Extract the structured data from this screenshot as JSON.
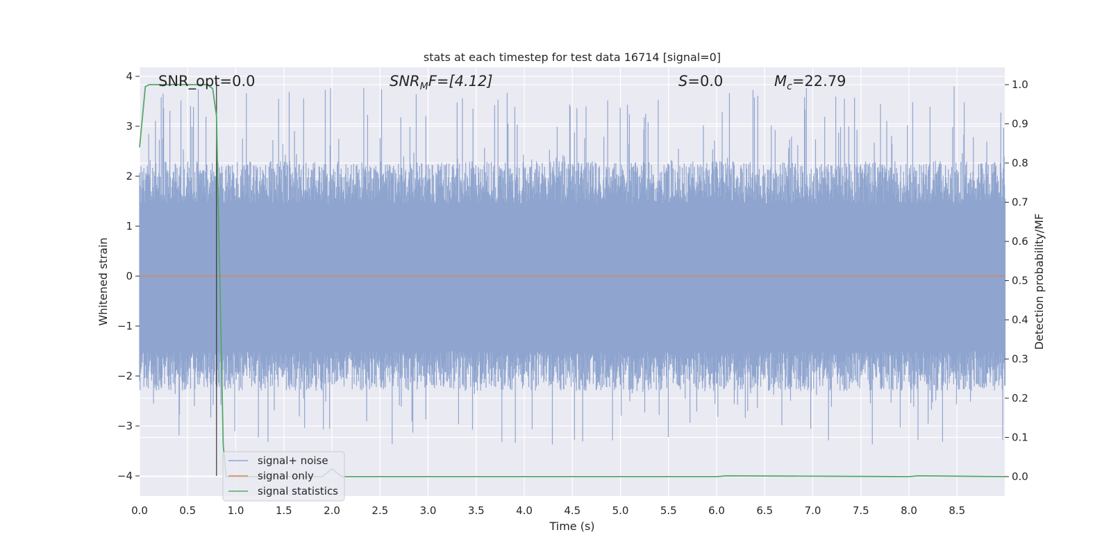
{
  "chart_data": {
    "type": "line",
    "title": "stats at each timestep for test data 16714 [signal=0]",
    "xlabel": "Time (s)",
    "ylabel_left": "Whitened strain",
    "ylabel_right": "Detection probability/MF",
    "xlim": [
      0.0,
      9.0
    ],
    "ylim_left": [
      -4.4,
      4.2
    ],
    "ylim_right": [
      -0.048,
      1.045
    ],
    "x_ticks": [
      "0.0",
      "0.5",
      "1.0",
      "1.5",
      "2.0",
      "2.5",
      "3.0",
      "3.5",
      "4.0",
      "4.5",
      "5.0",
      "5.5",
      "6.0",
      "6.5",
      "7.0",
      "7.5",
      "8.0",
      "8.5"
    ],
    "y_left_ticks": [
      "4",
      "3",
      "2",
      "1",
      "0",
      "−1",
      "−2",
      "−3",
      "−4"
    ],
    "y_right_ticks": [
      "1.0",
      "0.9",
      "0.8",
      "0.7",
      "0.6",
      "0.5",
      "0.4",
      "0.3",
      "0.2",
      "0.1",
      "0.0"
    ],
    "grid": true,
    "legend_position": "lower-left",
    "annotations": {
      "snr_opt": "SNR_opt=0.0",
      "snr_mf_main": "SNR",
      "snr_mf_sub": "M",
      "snr_mf_rest": "F=[4.12]",
      "s_main": "S",
      "s_rest": "=0.0",
      "mc_main": "M",
      "mc_sub": "c",
      "mc_rest": "=22.79"
    },
    "vertical_marker_x": 0.8,
    "series": [
      {
        "name": "signal+ noise",
        "color": "#8fa5cf",
        "axis": "left",
        "description_of_values": "whitened strain noise, dense band roughly within ±2 with spikes up to about ±3.8",
        "envelope_max": 3.8,
        "envelope_min": -3.4
      },
      {
        "name": "signal only",
        "color": "#dd8452",
        "axis": "left",
        "x": [
          0.0,
          9.0
        ],
        "y": [
          0.0,
          0.0
        ]
      },
      {
        "name": "signal statistics",
        "color": "#55a868",
        "axis": "right",
        "x": [
          0.0,
          0.06,
          0.1,
          0.3,
          0.5,
          0.7,
          0.76,
          0.8,
          0.87,
          0.9,
          1.5,
          1.9,
          2.0,
          2.1,
          3.0,
          6.0,
          6.1,
          8.0,
          8.1,
          9.0
        ],
        "y": [
          0.84,
          0.995,
          1.0,
          1.0,
          1.0,
          1.0,
          0.99,
          0.92,
          0.08,
          0.0,
          0.0,
          0.0,
          0.02,
          0.0,
          0.0,
          0.0,
          0.002,
          0.0,
          0.002,
          0.0
        ]
      }
    ]
  }
}
